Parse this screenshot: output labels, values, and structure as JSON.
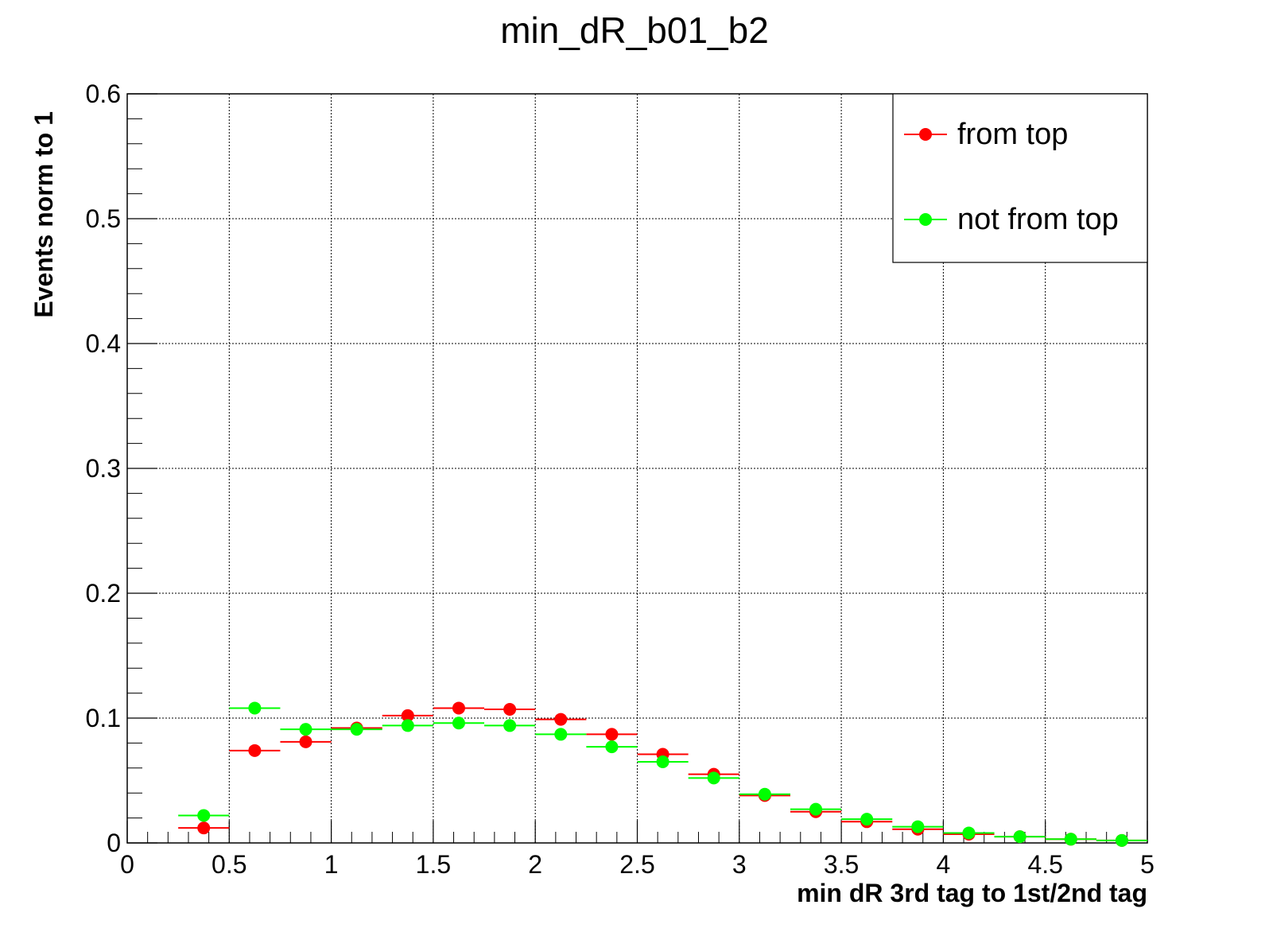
{
  "chart_data": {
    "type": "scatter",
    "title": "min_dR_b01_b2",
    "xlabel": "min dR 3rd tag to 1st/2nd tag",
    "ylabel": "Events norm to 1",
    "xlim": [
      0,
      5
    ],
    "ylim": [
      0,
      0.6
    ],
    "x_ticks": [
      "0",
      "0.5",
      "1",
      "1.5",
      "2",
      "2.5",
      "3",
      "3.5",
      "4",
      "4.5",
      "5"
    ],
    "y_ticks": [
      "0",
      "0.1",
      "0.2",
      "0.3",
      "0.4",
      "0.5",
      "0.6"
    ],
    "grid": true,
    "legend_position": "top-right",
    "bin_width": 0.25,
    "x": [
      0.375,
      0.625,
      0.875,
      1.125,
      1.375,
      1.625,
      1.875,
      2.125,
      2.375,
      2.625,
      2.875,
      3.125,
      3.375,
      3.625,
      3.875,
      4.125,
      4.375,
      4.625,
      4.875
    ],
    "series": [
      {
        "name": "from top",
        "color": "#ff0000",
        "values": [
          0.012,
          0.074,
          0.081,
          0.092,
          0.102,
          0.108,
          0.107,
          0.099,
          0.087,
          0.071,
          0.055,
          0.038,
          0.025,
          0.017,
          0.011,
          0.007,
          0.005,
          0.003,
          0.002
        ]
      },
      {
        "name": "not from top",
        "color": "#00ff00",
        "values": [
          0.022,
          0.108,
          0.091,
          0.091,
          0.094,
          0.096,
          0.094,
          0.087,
          0.077,
          0.065,
          0.052,
          0.039,
          0.027,
          0.019,
          0.013,
          0.008,
          0.005,
          0.003,
          0.002
        ]
      }
    ]
  }
}
